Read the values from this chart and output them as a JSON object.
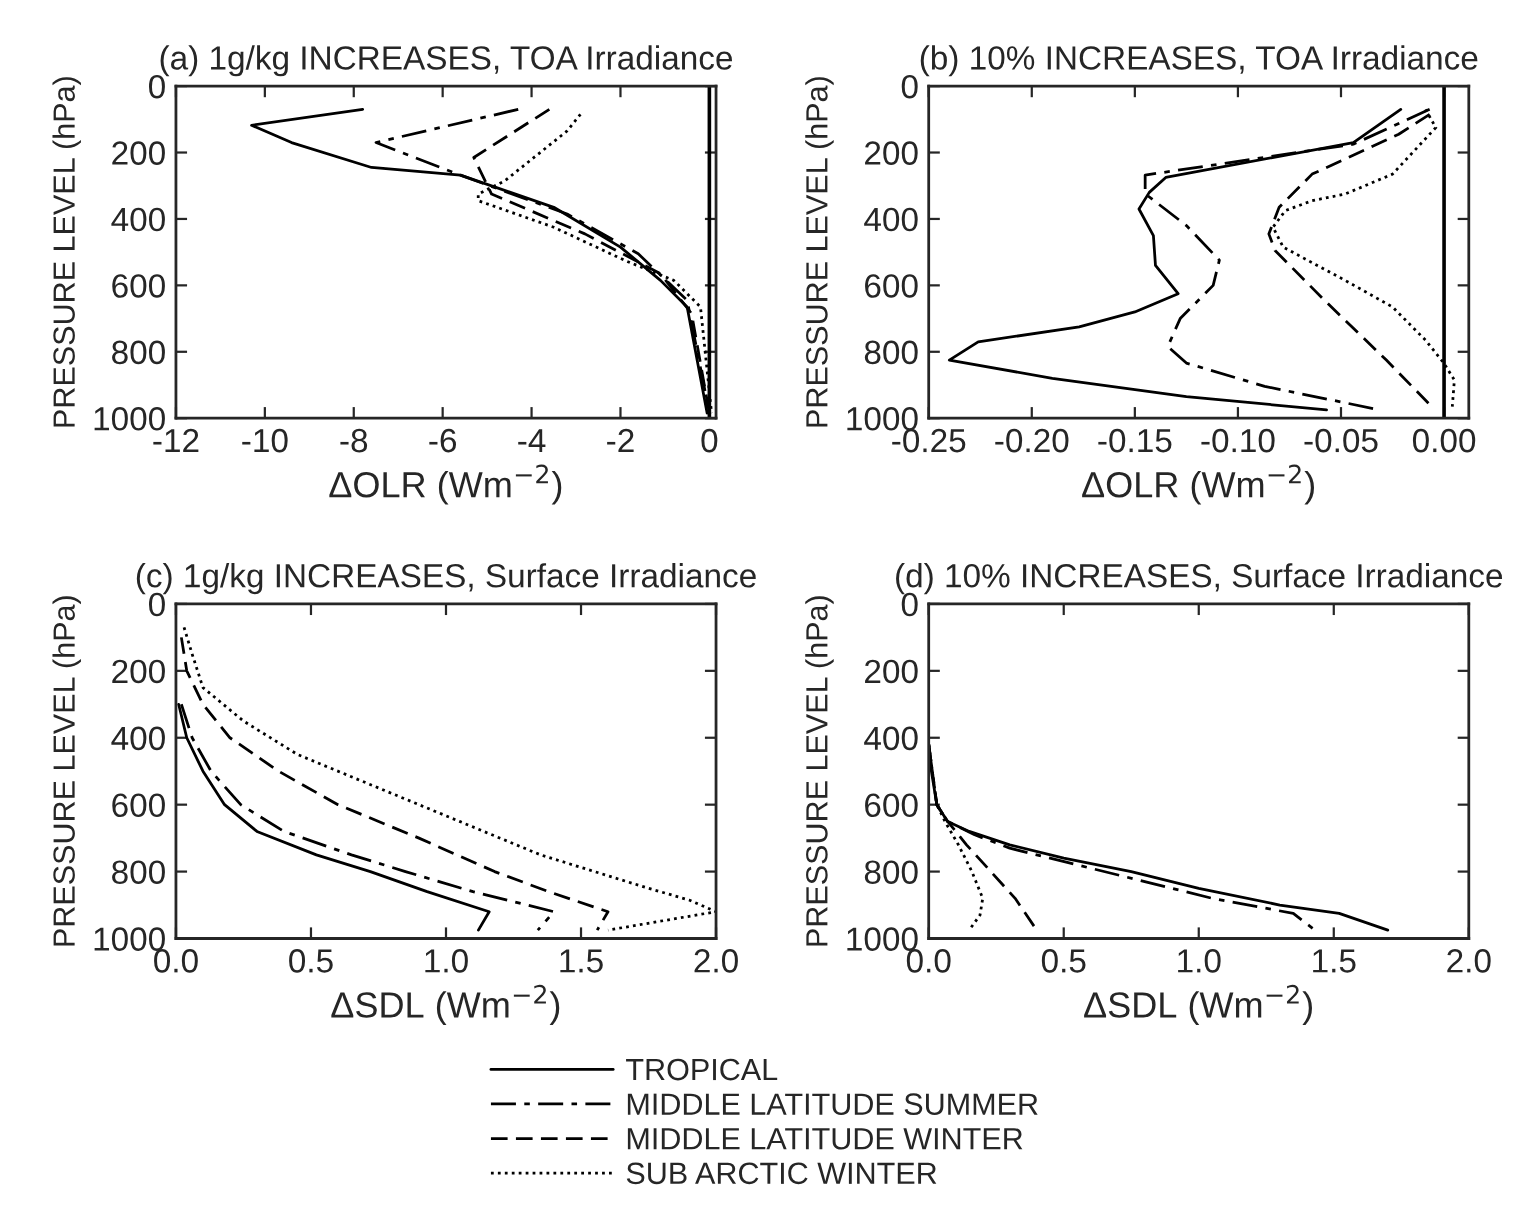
{
  "chart_data": [
    {
      "type": "line",
      "title": "(a) 1g/kg INCREASES, TOA Irradiance",
      "xlabel": "ΔOLR (Wm$^{−2}$)",
      "ylabel": "PRESSURE LEVEL (hPa)",
      "xlim": [
        -12,
        0.15
      ],
      "xticks": [
        -12,
        -10,
        -8,
        -6,
        -4,
        -2,
        0
      ],
      "ylim": [
        1000,
        0
      ],
      "yticks": [
        0,
        200,
        400,
        600,
        800,
        1000
      ],
      "orientation": "horizontal",
      "grid": false,
      "legend": false,
      "ref_lines": [
        {
          "axis": "x",
          "value": 0,
          "color": "#000000",
          "line_style": "solid"
        }
      ],
      "series": [
        {
          "color": "#000000",
          "line_style": "solid",
          "x": [
            70,
            118,
            170,
            245,
            268,
            365,
            485,
            585,
            665,
            985
          ],
          "values": [
            -7.8,
            -10.3,
            -9.4,
            -7.6,
            -5.6,
            -3.5,
            -2.0,
            -1.1,
            -0.5,
            -0.05
          ]
        },
        {
          "color": "#000000",
          "line_style": "dashdot",
          "x": [
            70,
            170,
            268,
            385,
            505,
            645,
            985
          ],
          "values": [
            -4.3,
            -7.5,
            -5.6,
            -3.2,
            -1.6,
            -0.5,
            0
          ]
        },
        {
          "color": "#000000",
          "line_style": "dashed",
          "x": [
            70,
            215,
            325,
            445,
            565,
            685,
            985
          ],
          "values": [
            -3.6,
            -5.3,
            -4.9,
            -2.8,
            -1.1,
            -0.4,
            0
          ]
        },
        {
          "color": "#000000",
          "line_style": "dotted",
          "x": [
            85,
            135,
            285,
            325,
            345,
            425,
            525,
            585,
            665,
            985
          ],
          "values": [
            -2.9,
            -3.2,
            -4.6,
            -5.2,
            -5.2,
            -3.5,
            -1.9,
            -0.8,
            -0.2,
            0.05
          ]
        }
      ]
    },
    {
      "type": "line",
      "title": "(b) 10% INCREASES, TOA Irradiance",
      "xlabel": "ΔOLR (Wm$^{−2}$)",
      "ylabel": "PRESSURE LEVEL (hPa)",
      "xlim": [
        -0.25,
        0.012
      ],
      "xticks": [
        {
          "value": -0.25,
          "label": "-0.25"
        },
        {
          "value": -0.2,
          "label": "-0.20"
        },
        {
          "value": -0.15,
          "label": "-0.15"
        },
        {
          "value": -0.1,
          "label": "-0.10"
        },
        {
          "value": -0.05,
          "label": "-0.05"
        },
        {
          "value": 0,
          "label": "0.00"
        }
      ],
      "ylim": [
        1000,
        0
      ],
      "yticks": [
        0,
        200,
        400,
        600,
        800,
        1000
      ],
      "orientation": "horizontal",
      "grid": false,
      "legend": false,
      "ref_lines": [
        {
          "axis": "x",
          "value": 0,
          "color": "#000000",
          "line_style": "solid"
        }
      ],
      "series": [
        {
          "color": "#000000",
          "line_style": "solid",
          "x": [
            70,
            170,
            275,
            320,
            370,
            450,
            540,
            625,
            680,
            725,
            770,
            825,
            880,
            935,
            975
          ],
          "values": [
            -0.021,
            -0.044,
            -0.135,
            -0.143,
            -0.148,
            -0.141,
            -0.14,
            -0.129,
            -0.15,
            -0.177,
            -0.226,
            -0.24,
            -0.19,
            -0.125,
            -0.057
          ]
        },
        {
          "color": "#000000",
          "line_style": "dashdot",
          "x": [
            70,
            175,
            268,
            324,
            420,
            524,
            600,
            700,
            784,
            834,
            904,
            974
          ],
          "values": [
            -0.007,
            -0.044,
            -0.145,
            -0.145,
            -0.125,
            -0.109,
            -0.112,
            -0.128,
            -0.134,
            -0.125,
            -0.087,
            -0.032
          ]
        },
        {
          "color": "#000000",
          "line_style": "dashed",
          "x": [
            85,
            145,
            265,
            365,
            445,
            495,
            645,
            825,
            965
          ],
          "values": [
            -0.007,
            -0.022,
            -0.064,
            -0.08,
            -0.085,
            -0.082,
            -0.058,
            -0.028,
            -0.006
          ]
        },
        {
          "color": "#000000",
          "line_style": "dotted",
          "x": [
            70,
            125,
            265,
            325,
            345,
            375,
            425,
            485,
            585,
            665,
            765,
            835,
            885,
            965
          ],
          "values": [
            -0.009,
            -0.004,
            -0.025,
            -0.048,
            -0.064,
            -0.077,
            -0.083,
            -0.078,
            -0.048,
            -0.025,
            -0.009,
            0.0,
            0.005,
            0.004
          ]
        }
      ]
    },
    {
      "type": "line",
      "title": "(c) 1g/kg INCREASES, Surface Irradiance",
      "xlabel": "ΔSDL (Wm$^{−2}$)",
      "ylabel": "PRESSURE LEVEL (hPa)",
      "xlim": [
        0,
        2
      ],
      "xticks": [
        {
          "value": 0,
          "label": "0.0"
        },
        {
          "value": 0.5,
          "label": "0.5"
        },
        {
          "value": 1,
          "label": "1.0"
        },
        {
          "value": 1.5,
          "label": "1.5"
        },
        {
          "value": 2,
          "label": "2.0"
        }
      ],
      "ylim": [
        1000,
        0
      ],
      "yticks": [
        0,
        200,
        400,
        600,
        800,
        1000
      ],
      "orientation": "horizontal",
      "grid": false,
      "legend": false,
      "series": [
        {
          "color": "#000000",
          "line_style": "solid",
          "x": [
            300,
            400,
            500,
            600,
            680,
            750,
            800,
            860,
            920,
            975
          ],
          "values": [
            0.01,
            0.04,
            0.1,
            0.18,
            0.3,
            0.52,
            0.72,
            0.93,
            1.16,
            1.12
          ]
        },
        {
          "color": "#000000",
          "line_style": "dashdot",
          "x": [
            300,
            400,
            500,
            600,
            680,
            750,
            800,
            860,
            920,
            975
          ],
          "values": [
            0.02,
            0.06,
            0.13,
            0.24,
            0.4,
            0.65,
            0.85,
            1.1,
            1.4,
            1.34
          ]
        },
        {
          "color": "#000000",
          "line_style": "dashed",
          "x": [
            100,
            200,
            300,
            400,
            500,
            600,
            700,
            800,
            860,
            920,
            975
          ],
          "values": [
            0.02,
            0.04,
            0.1,
            0.2,
            0.38,
            0.6,
            0.9,
            1.18,
            1.38,
            1.6,
            1.56
          ]
        },
        {
          "color": "#000000",
          "line_style": "dotted",
          "x": [
            70,
            150,
            250,
            350,
            450,
            550,
            650,
            750,
            850,
            885,
            920,
            975
          ],
          "values": [
            0.03,
            0.06,
            0.1,
            0.25,
            0.45,
            0.75,
            1.05,
            1.35,
            1.75,
            1.9,
            2.0,
            1.6
          ]
        }
      ]
    },
    {
      "type": "line",
      "title": "(d) 10% INCREASES, Surface Irradiance",
      "xlabel": "ΔSDL (Wm$^{−2}$)",
      "ylabel": "PRESSURE LEVEL (hPa)",
      "xlim": [
        0,
        2
      ],
      "xticks": [
        {
          "value": 0,
          "label": "0.0"
        },
        {
          "value": 0.5,
          "label": "0.5"
        },
        {
          "value": 1,
          "label": "1.0"
        },
        {
          "value": 1.5,
          "label": "1.5"
        },
        {
          "value": 2,
          "label": "2.0"
        }
      ],
      "ylim": [
        1000,
        0
      ],
      "yticks": [
        0,
        200,
        400,
        600,
        800,
        1000
      ],
      "orientation": "horizontal",
      "grid": false,
      "legend": "bottom",
      "series": [
        {
          "name": "TROPICAL",
          "color": "#000000",
          "line_style": "solid",
          "x": [
            420,
            500,
            600,
            650,
            680,
            720,
            760,
            800,
            850,
            900,
            925,
            975
          ],
          "values": [
            0.0,
            0.01,
            0.03,
            0.07,
            0.15,
            0.3,
            0.5,
            0.75,
            1.0,
            1.3,
            1.52,
            1.7
          ]
        },
        {
          "name": "MIDDLE LATITUDE SUMMER",
          "color": "#000000",
          "line_style": "dashdot",
          "x": [
            420,
            600,
            650,
            690,
            730,
            780,
            830,
            880,
            925,
            975
          ],
          "values": [
            0.0,
            0.03,
            0.07,
            0.17,
            0.3,
            0.55,
            0.8,
            1.05,
            1.35,
            1.43
          ]
        },
        {
          "name": "MIDDLE LATITUDE WINTER",
          "color": "#000000",
          "line_style": "dashed",
          "x": [
            420,
            600,
            650,
            720,
            800,
            880,
            975
          ],
          "values": [
            0.0,
            0.03,
            0.07,
            0.14,
            0.23,
            0.32,
            0.4
          ]
        },
        {
          "name": "SUB ARCTIC WINTER",
          "color": "#000000",
          "line_style": "dotted",
          "x": [
            420,
            600,
            650,
            720,
            800,
            880,
            930,
            975
          ],
          "values": [
            0.0,
            0.03,
            0.06,
            0.11,
            0.16,
            0.2,
            0.19,
            0.15
          ]
        }
      ]
    }
  ]
}
